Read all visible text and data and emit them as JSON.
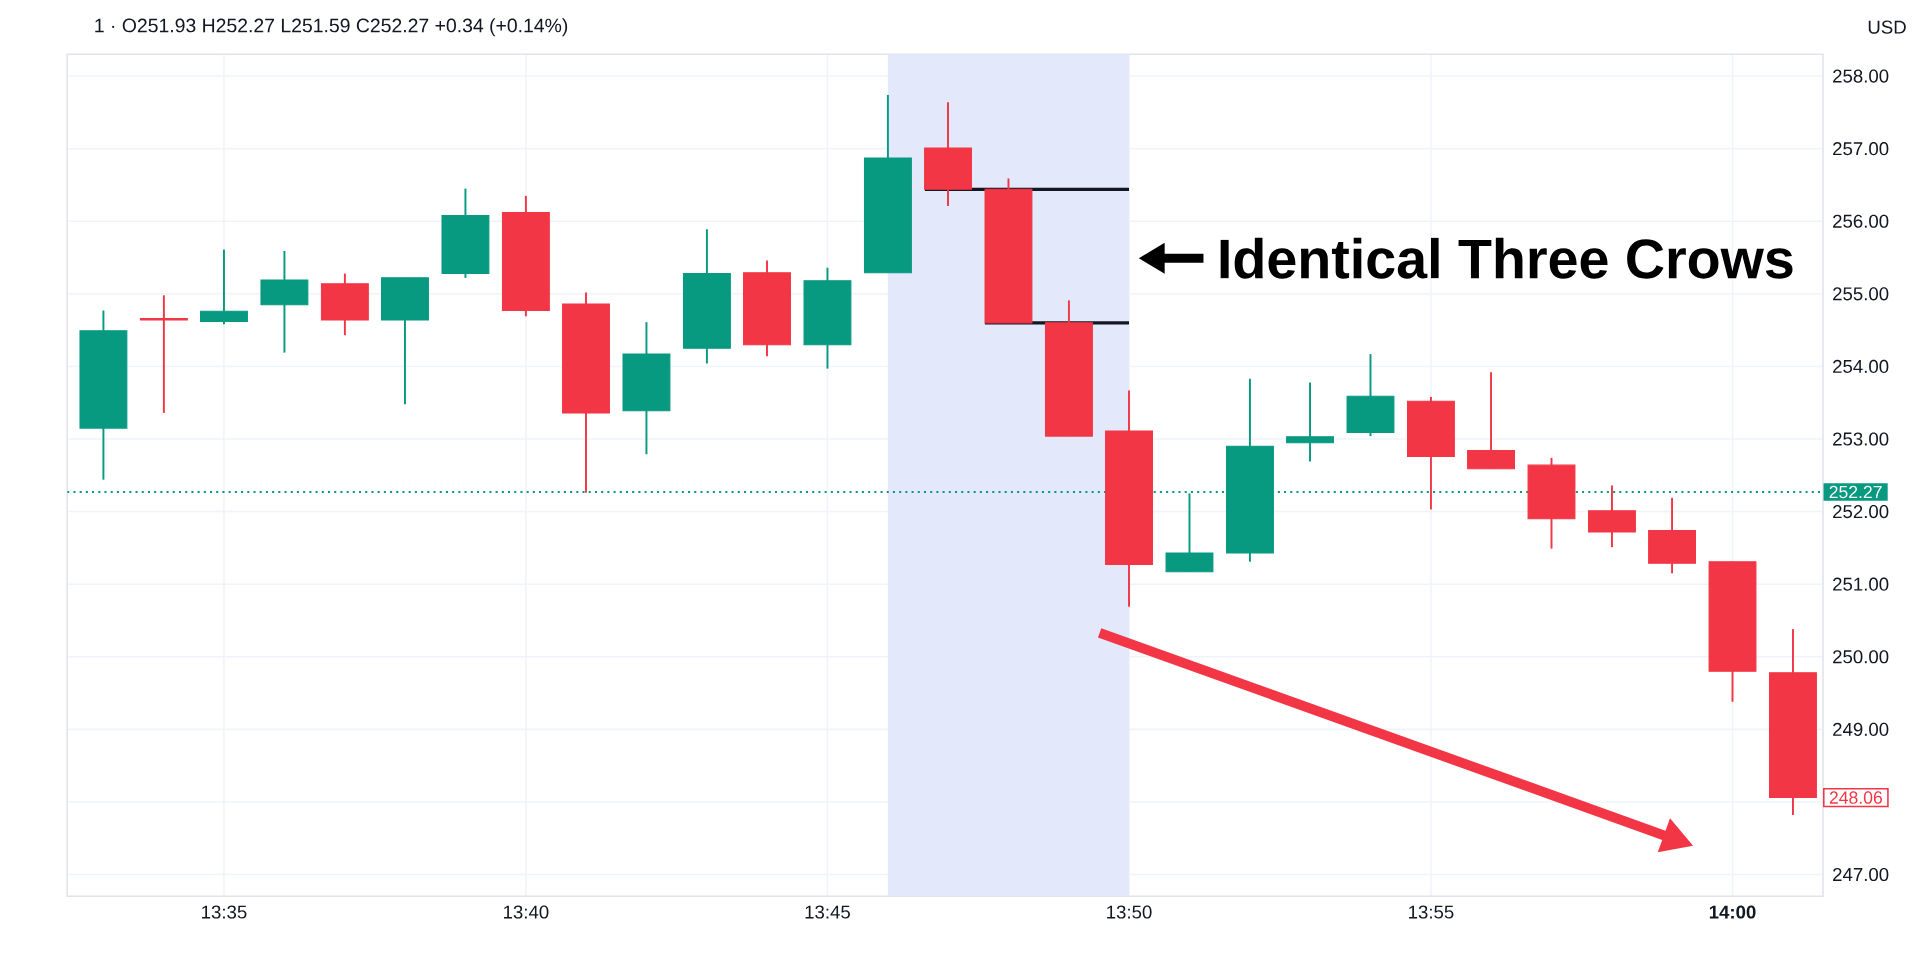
{
  "chart_data": {
    "type": "candlestick",
    "title": "1 · O251.93 H252.27 L251.59 C252.27 +0.34 (+0.14%)",
    "ylabel": "USD",
    "series": [
      {
        "x": [
          13.55,
          13.5667,
          13.5833,
          13.6,
          13.6167,
          13.6333,
          13.65,
          13.6667,
          13.6833,
          13.7,
          13.7167,
          13.7333,
          13.75,
          13.7667,
          13.7833,
          13.8,
          13.8167,
          13.8333,
          13.85,
          13.8667,
          13.8833,
          13.9,
          13.9167,
          13.9333,
          13.95,
          13.9667,
          13.9833,
          14,
          14.0167
        ],
        "ohlc": [
          [
            253.15,
            254.77,
            252.44,
            254.49
          ],
          [
            254.66,
            254.98,
            253.36,
            254.64
          ],
          [
            254.62,
            255.61,
            254.58,
            254.76
          ],
          [
            254.85,
            255.59,
            254.19,
            255.19
          ],
          [
            255.14,
            255.28,
            254.43,
            254.64
          ],
          [
            254.64,
            255.22,
            253.48,
            255.22
          ],
          [
            255.28,
            256.45,
            255.22,
            256.08
          ],
          [
            256.12,
            256.35,
            254.69,
            254.77
          ],
          [
            254.86,
            255.02,
            252.26,
            253.36
          ],
          [
            253.39,
            254.61,
            252.79,
            254.17
          ],
          [
            254.25,
            255.89,
            254.04,
            255.28
          ],
          [
            255.29,
            255.46,
            254.14,
            254.3
          ],
          [
            254.3,
            255.36,
            253.97,
            255.18
          ],
          [
            255.29,
            257.74,
            255.29,
            256.87
          ],
          [
            257.01,
            257.64,
            256.21,
            256.44
          ],
          [
            256.44,
            256.59,
            254.6,
            254.6
          ],
          [
            254.6,
            254.91,
            253.04,
            253.04
          ],
          [
            253.11,
            253.67,
            250.69,
            251.27
          ],
          [
            251.17,
            252.25,
            251.17,
            251.43
          ],
          [
            251.43,
            253.83,
            251.31,
            252.9
          ],
          [
            252.95,
            253.78,
            252.69,
            253.03
          ],
          [
            253.09,
            254.17,
            253.04,
            253.59
          ],
          [
            253.52,
            253.58,
            252.03,
            252.76
          ],
          [
            252.84,
            253.92,
            252.59,
            252.59
          ],
          [
            252.64,
            252.74,
            251.49,
            251.9
          ],
          [
            252.01,
            252.36,
            251.51,
            251.72
          ],
          [
            251.74,
            252.19,
            251.15,
            251.29
          ],
          [
            251.31,
            251.31,
            249.38,
            249.8
          ],
          [
            249.78,
            250.38,
            247.82,
            248.06
          ]
        ],
        "colors": [
          "#089981",
          "#f23645",
          "#089981",
          "#089981",
          "#f23645",
          "#089981",
          "#089981",
          "#f23645",
          "#f23645",
          "#089981",
          "#089981",
          "#f23645",
          "#089981",
          "#089981",
          "#f23645",
          "#f23645",
          "#f23645",
          "#f23645",
          "#089981",
          "#089981",
          "#089981",
          "#089981",
          "#f23645",
          "#f23645",
          "#f23645",
          "#f23645",
          "#f23645",
          "#f23645",
          "#f23645"
        ]
      },
      {
        "type": "line",
        "x": [
          13.7769,
          13.8333
        ],
        "values": [
          256.44,
          256.44
        ],
        "color": "#131722"
      },
      {
        "type": "line",
        "x": [
          13.7935,
          13.8333
        ],
        "values": [
          254.6,
          254.6
        ],
        "color": "#131722"
      }
    ],
    "xlim": [
      13.54,
      14.025
    ],
    "ylim": [
      246.7,
      258.3
    ],
    "xticks": [
      {
        "value": 13.5833,
        "label": "13:35"
      },
      {
        "value": 13.6667,
        "label": "13:40"
      },
      {
        "value": 13.75,
        "label": "13:45"
      },
      {
        "value": 13.8333,
        "label": "13:50"
      },
      {
        "value": 13.9167,
        "label": "13:55"
      },
      {
        "value": 14,
        "label": "**14:00**"
      }
    ],
    "yticks": [
      {
        "value": 247,
        "label": "247.00"
      },
      {
        "value": 248,
        "label": null
      },
      {
        "value": 249,
        "label": "249.00"
      },
      {
        "value": 250,
        "label": "250.00"
      },
      {
        "value": 251,
        "label": "251.00"
      },
      {
        "value": 252,
        "label": "252.00"
      },
      {
        "value": 253,
        "label": "253.00"
      },
      {
        "value": 254,
        "label": "254.00"
      },
      {
        "value": 255,
        "label": "255.00"
      },
      {
        "value": 256,
        "label": "256.00"
      },
      {
        "value": 257,
        "label": "257.00"
      },
      {
        "value": 258,
        "label": "258.00"
      }
    ],
    "grid": true,
    "ref_lines": [
      {
        "axis": "y",
        "value": 252.27,
        "label": "252.27",
        "color": "#089981",
        "line_style": "dotted"
      }
    ],
    "bands": [
      {
        "axis": "x",
        "from": 13.7667,
        "to": 13.8333,
        "color": "#e3e8fb"
      }
    ],
    "annotations": [
      {
        "text": "Identical Three Crows",
        "x": 13.836,
        "y": 255.49
      },
      "248.06"
    ]
  }
}
